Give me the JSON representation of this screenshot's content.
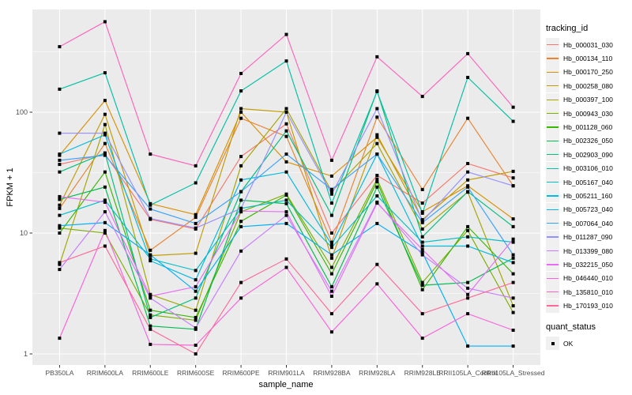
{
  "chart_data": {
    "type": "line",
    "title": "",
    "xlabel": "sample_name",
    "ylabel": "FPKM + 1",
    "y_scale": "log10",
    "ylim": [
      1,
      600
    ],
    "grid": true,
    "legend_position": "right",
    "y_ticks": [
      {
        "label": "100",
        "value": 100
      },
      {
        "label": "10",
        "value": 10
      },
      {
        "label": "1",
        "value": 1
      }
    ],
    "y_minor": [
      3.162,
      31.623,
      316.228
    ],
    "categories": [
      "PB350LA",
      "RRIM600LA",
      "RRIM600LE",
      "RRIM600SE",
      "RRIM600PE",
      "RRIM901LA",
      "RRIM928BA",
      "RRIM928LA",
      "RRIM928LE",
      "RRII105LA_Control",
      "RRII105LA_Stressed"
    ],
    "legend_title": "tracking_id",
    "series": [
      {
        "name": "Hb_000031_030",
        "color": "#F8766D",
        "values": [
          37,
          45,
          13,
          10.8,
          43,
          80,
          10,
          30,
          17.7,
          37.6,
          28.6
        ]
      },
      {
        "name": "Hb_000134_110",
        "color": "#EA8331",
        "values": [
          16,
          55,
          7.2,
          13.5,
          89,
          63,
          8.4,
          91,
          22.9,
          89,
          24.6
        ]
      },
      {
        "name": "Hb_000170_250",
        "color": "#D89000",
        "values": [
          44,
          125,
          17.5,
          14.2,
          100,
          38.8,
          29.6,
          62,
          15,
          24.6,
          13.1
        ]
      },
      {
        "name": "Hb_000258_080",
        "color": "#C09B00",
        "values": [
          17,
          96,
          6.5,
          6.8,
          107,
          100,
          6.2,
          65,
          12.9,
          27.5,
          32.4
        ]
      },
      {
        "name": "Hb_000397_100",
        "color": "#A3A500",
        "values": [
          5.5,
          79,
          3.1,
          2.3,
          36,
          107,
          22,
          55,
          10.8,
          21.8,
          2.5
        ]
      },
      {
        "name": "Hb_000943_030",
        "color": "#7CAE00",
        "values": [
          11,
          10,
          2.1,
          1.9,
          15,
          21,
          5.2,
          28,
          3.9,
          10.5,
          2.2
        ]
      },
      {
        "name": "Hb_001128_060",
        "color": "#39B600",
        "values": [
          10,
          32,
          2.3,
          2.0,
          12.5,
          20.6,
          4.6,
          26.6,
          3.4,
          11.3,
          4.6
        ]
      },
      {
        "name": "Hb_002326_050",
        "color": "#00BB4E",
        "values": [
          19,
          24,
          1.7,
          1.6,
          18.7,
          17.5,
          3.6,
          24,
          3.7,
          3.9,
          6.2
        ]
      },
      {
        "name": "Hb_002903_090",
        "color": "#00BF7D",
        "values": [
          32,
          46,
          2.0,
          2.9,
          22,
          70,
          14,
          150,
          9.3,
          22,
          11.3
        ]
      },
      {
        "name": "Hb_003106_010",
        "color": "#00C1A3",
        "values": [
          155,
          212,
          17,
          26,
          150,
          265,
          17.7,
          148,
          14.6,
          194,
          84
        ]
      },
      {
        "name": "Hb_005167_040",
        "color": "#00BFC4",
        "values": [
          14,
          18.7,
          6.1,
          4.9,
          16,
          18.7,
          7.6,
          20.3,
          8.4,
          9.3,
          8.4
        ]
      },
      {
        "name": "Hb_005211_160",
        "color": "#00BAE0",
        "values": [
          45,
          65,
          5.9,
          4.1,
          27.5,
          32,
          8.0,
          45,
          7.8,
          7.8,
          5.7
        ]
      },
      {
        "name": "Hb_005723_040",
        "color": "#00B0F6",
        "values": [
          11.5,
          12.2,
          6.6,
          3.3,
          11.3,
          12,
          6.6,
          12,
          6.9,
          1.16,
          1.16
        ]
      },
      {
        "name": "Hb_007064_040",
        "color": "#35A2FF",
        "values": [
          40,
          44,
          15.8,
          12,
          22,
          45,
          23,
          45,
          12.2,
          24,
          6.6
        ]
      },
      {
        "name": "Hb_011287_090",
        "color": "#9590FF",
        "values": [
          67,
          67,
          13.2,
          11,
          16,
          100,
          21,
          107,
          12.5,
          32,
          24.6
        ]
      },
      {
        "name": "Hb_013399_080",
        "color": "#C77CFF",
        "values": [
          5.0,
          15,
          2.9,
          1.64,
          7.1,
          14,
          3.3,
          18,
          6.6,
          3.5,
          2.9
        ]
      },
      {
        "name": "Hb_032215_050",
        "color": "#E76BF3",
        "values": [
          20,
          18,
          3.0,
          3.6,
          15.2,
          15,
          3.0,
          17.7,
          7.3,
          3.1,
          8.9
        ]
      },
      {
        "name": "Hb_046440_010",
        "color": "#FA62DB",
        "values": [
          1.35,
          10.5,
          1.2,
          1.18,
          2.9,
          5.2,
          1.52,
          3.8,
          1.35,
          2.15,
          1.57
        ]
      },
      {
        "name": "Hb_135810_010",
        "color": "#FF62BC",
        "values": [
          348,
          560,
          45,
          36,
          209,
          440,
          40,
          287,
          135,
          305,
          110
        ]
      },
      {
        "name": "Hb_170193_010",
        "color": "#FF6A98",
        "values": [
          5.7,
          7.8,
          1.6,
          1.0,
          3.9,
          6.1,
          2.15,
          5.5,
          2.15,
          2.9,
          3.9
        ]
      }
    ],
    "quant_legend": {
      "title": "quant_status",
      "items": [
        {
          "label": "OK",
          "marker": "black-square"
        }
      ]
    }
  },
  "style": {
    "panel_bg": "#EBEBEB",
    "grid_color": "#FFFFFF",
    "marker_color": "#000000",
    "tick_text_color": "#4D4D4D",
    "tick_mark_color": "#333333",
    "legend_key_bg": "#F0F0F0"
  }
}
